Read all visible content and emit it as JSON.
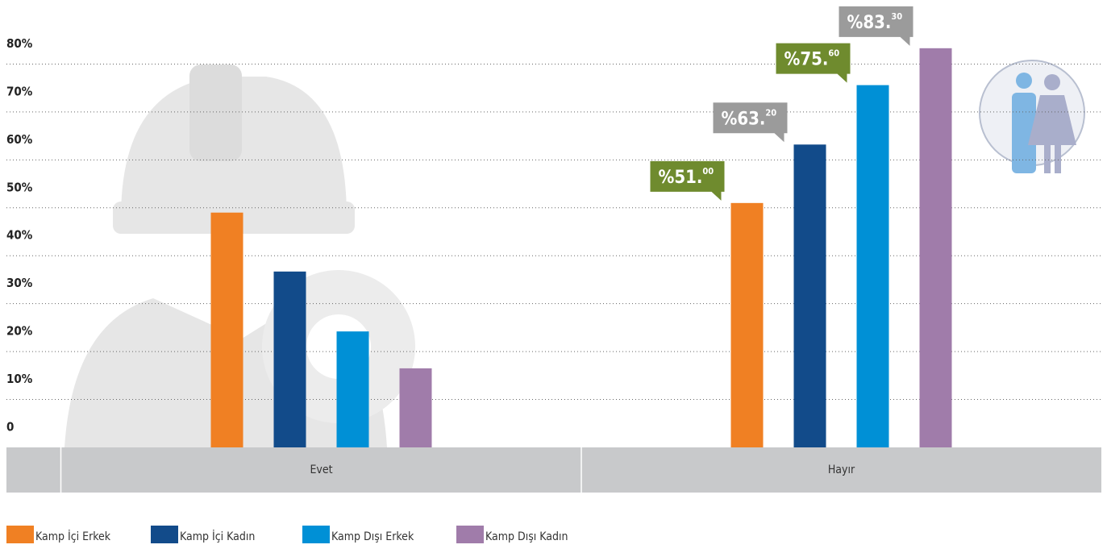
{
  "chart_data": {
    "type": "bar",
    "categories": [
      "Evet",
      "Hayır"
    ],
    "series": [
      {
        "name": "Kamp İçi Erkek",
        "color": "#f08023",
        "label_color": "#6f8b2e",
        "values": [
          49.0,
          51.0
        ],
        "value_labels": [
          null,
          "%51.00"
        ]
      },
      {
        "name": "Kamp İçi Kadın",
        "color": "#124b8a",
        "label_color": "#9b9b9b",
        "values": [
          36.7,
          63.2
        ],
        "value_labels": [
          null,
          "%63.20"
        ]
      },
      {
        "name": "Kamp Dışı Erkek",
        "color": "#0090d6",
        "label_color": "#6f8b2e",
        "values": [
          24.2,
          75.6
        ],
        "value_labels": [
          null,
          "%75.60"
        ]
      },
      {
        "name": "Kamp Dışı Kadın",
        "color": "#a07caa",
        "label_color": "#9b9b9b",
        "values": [
          16.5,
          83.3
        ],
        "value_labels": [
          null,
          "%83.30"
        ]
      }
    ],
    "ylim": [
      0,
      90
    ],
    "yticks": [
      0,
      {
        "value": 10,
        "label": "10%"
      },
      {
        "value": 20,
        "label": "20%"
      },
      {
        "value": 30,
        "label": "30%"
      },
      {
        "value": 40,
        "label": "40%"
      },
      {
        "value": 50,
        "label": "50%"
      },
      {
        "value": 60,
        "label": "60%"
      },
      {
        "value": 70,
        "label": "70%"
      },
      {
        "value": 80,
        "label": "80%"
      }
    ],
    "grid": true
  }
}
